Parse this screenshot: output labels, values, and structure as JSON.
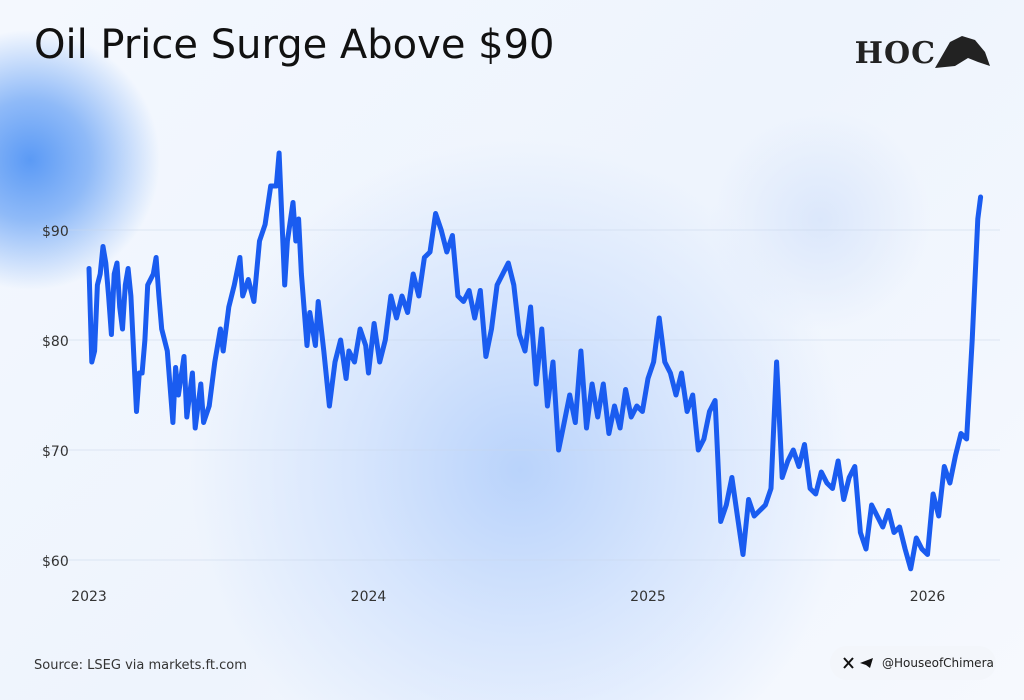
{
  "title": "Oil Price Surge Above $90",
  "logo": "HOC",
  "footer": {
    "source": "Source: LSEG via markets.ft.com",
    "handle": "@HouseofChimera"
  },
  "chart_data": {
    "type": "line",
    "color": "#1a5cf0",
    "grid": true,
    "xlim": [
      2023,
      2026.22
    ],
    "xticks": [
      2023,
      2024,
      2025,
      2026
    ],
    "ylim": [
      58,
      100
    ],
    "yticks": [
      {
        "value": 60,
        "label": "$60"
      },
      {
        "value": 70,
        "label": "$70"
      },
      {
        "value": 80,
        "label": "$80"
      },
      {
        "value": 90,
        "label": "$90"
      }
    ],
    "x": [
      2023.0,
      2023.01,
      2023.02,
      2023.03,
      2023.04,
      2023.05,
      2023.06,
      2023.07,
      2023.08,
      2023.09,
      2023.1,
      2023.11,
      2023.12,
      2023.13,
      2023.14,
      2023.15,
      2023.17,
      2023.18,
      2023.19,
      2023.2,
      2023.21,
      2023.23,
      2023.24,
      2023.25,
      2023.26,
      2023.28,
      2023.3,
      2023.31,
      2023.32,
      2023.34,
      2023.35,
      2023.37,
      2023.38,
      2023.4,
      2023.41,
      2023.43,
      2023.45,
      2023.47,
      2023.48,
      2023.5,
      2023.52,
      2023.54,
      2023.55,
      2023.57,
      2023.59,
      2023.61,
      2023.63,
      2023.65,
      2023.67,
      2023.68,
      2023.7,
      2023.71,
      2023.73,
      2023.74,
      2023.75,
      2023.76,
      2023.78,
      2023.79,
      2023.81,
      2023.82,
      2023.84,
      2023.86,
      2023.88,
      2023.9,
      2023.92,
      2023.93,
      2023.95,
      2023.97,
      2023.99,
      2024.0,
      2024.02,
      2024.04,
      2024.06,
      2024.08,
      2024.1,
      2024.12,
      2024.14,
      2024.16,
      2024.18,
      2024.2,
      2024.22,
      2024.24,
      2024.26,
      2024.28,
      2024.3,
      2024.32,
      2024.34,
      2024.36,
      2024.38,
      2024.4,
      2024.42,
      2024.44,
      2024.46,
      2024.48,
      2024.5,
      2024.52,
      2024.54,
      2024.56,
      2024.58,
      2024.6,
      2024.62,
      2024.64,
      2024.66,
      2024.68,
      2024.7,
      2024.72,
      2024.74,
      2024.76,
      2024.78,
      2024.8,
      2024.82,
      2024.84,
      2024.86,
      2024.88,
      2024.9,
      2024.92,
      2024.94,
      2024.96,
      2024.98,
      2025.0,
      2025.02,
      2025.04,
      2025.06,
      2025.08,
      2025.1,
      2025.12,
      2025.14,
      2025.16,
      2025.18,
      2025.2,
      2025.22,
      2025.24,
      2025.26,
      2025.28,
      2025.3,
      2025.32,
      2025.34,
      2025.36,
      2025.38,
      2025.4,
      2025.42,
      2025.44,
      2025.46,
      2025.48,
      2025.5,
      2025.52,
      2025.54,
      2025.56,
      2025.58,
      2025.6,
      2025.62,
      2025.64,
      2025.66,
      2025.68,
      2025.7,
      2025.72,
      2025.74,
      2025.76,
      2025.78,
      2025.8,
      2025.82,
      2025.84,
      2025.86,
      2025.88,
      2025.9,
      2025.92,
      2025.94,
      2025.96,
      2025.98,
      2026.0,
      2026.02,
      2026.04,
      2026.06,
      2026.08,
      2026.1,
      2026.12,
      2026.14,
      2026.16,
      2026.18,
      2026.19
    ],
    "values": [
      86.5,
      78,
      79,
      85,
      86,
      88.5,
      87,
      84,
      80.5,
      86,
      87,
      83,
      81,
      85,
      86.5,
      84,
      73.5,
      77,
      77,
      80,
      85,
      86,
      87.5,
      84,
      81,
      79,
      72.5,
      77.5,
      75,
      78.5,
      73,
      77,
      72,
      76,
      72.5,
      74,
      78,
      81,
      79,
      83,
      85,
      87.5,
      84,
      85.5,
      83.5,
      89,
      90.5,
      94,
      94,
      97,
      85,
      89,
      92.5,
      89,
      91,
      86,
      79.5,
      82.5,
      79.5,
      83.5,
      79,
      74,
      78,
      80,
      76.5,
      79,
      78,
      81,
      79.5,
      77,
      81.5,
      78,
      80,
      84,
      82,
      84,
      82.5,
      86,
      84,
      87.5,
      88,
      91.5,
      90,
      88,
      89.5,
      84,
      83.5,
      84.5,
      82,
      84.5,
      78.5,
      81,
      85,
      86,
      87,
      85,
      80.5,
      79,
      83,
      76,
      81,
      74,
      78,
      70,
      72.5,
      75,
      72.5,
      79,
      72,
      76,
      73,
      76,
      71.5,
      74,
      72,
      75.5,
      73,
      74,
      73.5,
      76.5,
      78,
      82,
      78,
      77,
      75,
      77,
      73.5,
      75,
      70,
      71,
      73.5,
      74.5,
      63.5,
      65,
      67.5,
      64,
      60.5,
      65.5,
      64,
      64.5,
      65,
      66.5,
      78,
      67.5,
      69,
      70,
      68.5,
      70.5,
      66.5,
      66,
      68,
      67,
      66.5,
      69,
      65.5,
      67.5,
      68.5,
      62.5,
      61,
      65,
      64,
      63,
      64.5,
      62.5,
      63,
      61,
      59.2,
      62,
      61,
      60.5,
      66,
      64,
      68.5,
      67,
      69.5,
      71.5,
      71,
      80,
      91,
      93
    ]
  }
}
